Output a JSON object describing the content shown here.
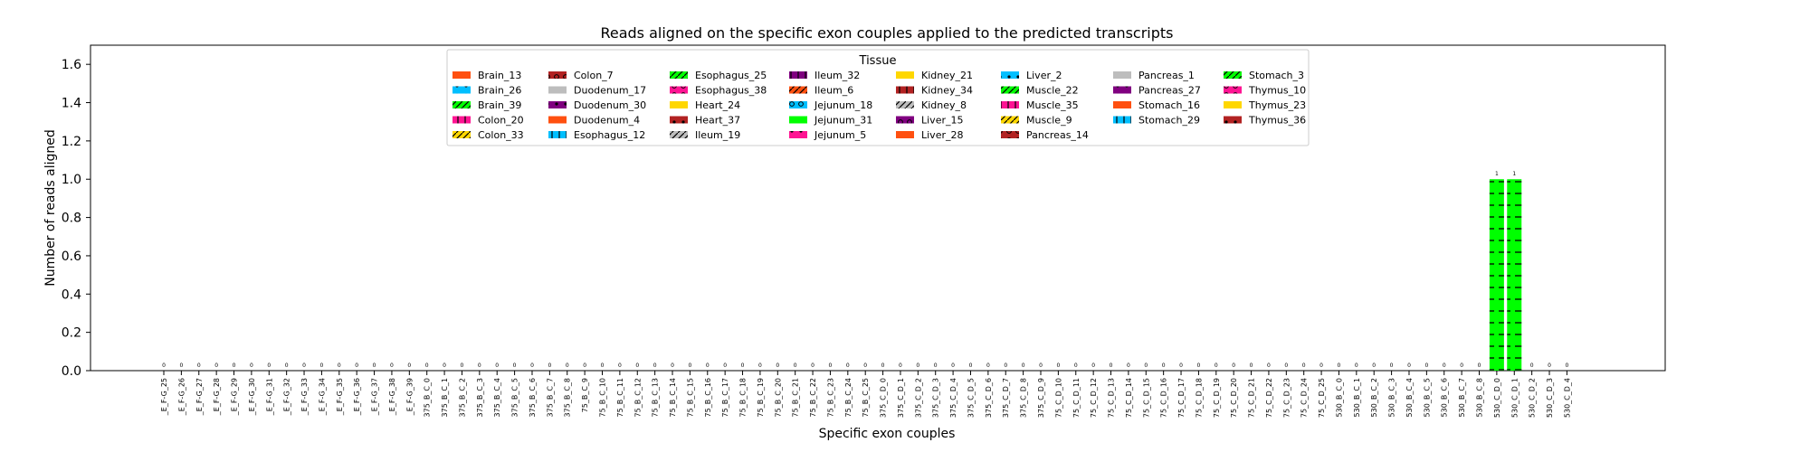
{
  "chart_data": {
    "type": "bar",
    "title": "Reads aligned on the specific exon couples applied to the predicted transcripts",
    "xlabel": "Specific exon couples",
    "ylabel": "Number of reads aligned",
    "ylim": [
      0,
      1.7
    ],
    "yticks": [
      0.0,
      0.2,
      0.4,
      0.6,
      0.8,
      1.0,
      1.2,
      1.4,
      1.6
    ],
    "ytick_labels": [
      "0.0",
      "0.2",
      "0.4",
      "0.6",
      "0.8",
      "1.0",
      "1.2",
      "1.4",
      "1.6"
    ],
    "grid": false,
    "legend_placement": "top-center",
    "categories": [
      "_E_F-G_25",
      "_E_F-G_26",
      "_E_F-G_27",
      "_E_F-G_28",
      "_E_F-G_29",
      "_E_F-G_30",
      "_E_F-G_31",
      "_E_F-G_32",
      "_E_F-G_33",
      "_E_F-G_34",
      "_E_F-G_35",
      "_E_F-G_36",
      "_E_F-G_37",
      "_E_F-G_38",
      "_E_F-G_39",
      "375_B_C_0",
      "375_B_C_1",
      "375_B_C_2",
      "375_B_C_3",
      "375_B_C_4",
      "375_B_C_5",
      "375_B_C_6",
      "375_B_C_7",
      "375_B_C_8",
      "75_B_C_9",
      "75_B_C_10",
      "75_B_C_11",
      "75_B_C_12",
      "75_B_C_13",
      "75_B_C_14",
      "75_B_C_15",
      "75_B_C_16",
      "75_B_C_17",
      "75_B_C_18",
      "75_B_C_19",
      "75_B_C_20",
      "75_B_C_21",
      "75_B_C_22",
      "75_B_C_23",
      "75_B_C_24",
      "75_B_C_25",
      "375_C_D_0",
      "375_C_D_1",
      "375_C_D_2",
      "375_C_D_3",
      "375_C_D_4",
      "375_C_D_5",
      "375_C_D_6",
      "375_C_D_7",
      "375_C_D_8",
      "375_C_D_9",
      "75_C_D_10",
      "75_C_D_11",
      "75_C_D_12",
      "75_C_D_13",
      "75_C_D_14",
      "75_C_D_15",
      "75_C_D_16",
      "75_C_D_17",
      "75_C_D_18",
      "75_C_D_19",
      "75_C_D_20",
      "75_C_D_21",
      "75_C_D_22",
      "75_C_D_23",
      "75_C_D_24",
      "75_C_D_25",
      "530_B_C_0",
      "530_B_C_1",
      "530_B_C_2",
      "530_B_C_3",
      "530_B_C_4",
      "530_B_C_5",
      "530_B_C_6",
      "530_B_C_7",
      "530_B_C_8",
      "530_C_D_0",
      "530_C_D_1",
      "530_C_D_2",
      "530_C_D_3",
      "530_C_D_4"
    ],
    "values": [
      0,
      0,
      0,
      0,
      0,
      0,
      0,
      0,
      0,
      0,
      0,
      0,
      0,
      0,
      0,
      0,
      0,
      0,
      0,
      0,
      0,
      0,
      0,
      0,
      0,
      0,
      0,
      0,
      0,
      0,
      0,
      0,
      0,
      0,
      0,
      0,
      0,
      0,
      0,
      0,
      0,
      0,
      0,
      0,
      0,
      0,
      0,
      0,
      0,
      0,
      0,
      0,
      0,
      0,
      0,
      0,
      0,
      0,
      0,
      0,
      0,
      0,
      0,
      0,
      0,
      0,
      0,
      0,
      0,
      0,
      0,
      0,
      0,
      0,
      0,
      0,
      1,
      1,
      0,
      0,
      0
    ],
    "data_labels": [
      "0",
      "0",
      "0",
      "0",
      "0",
      "0",
      "0",
      "0",
      "0",
      "0",
      "0",
      "0",
      "0",
      "0",
      "0",
      "0",
      "0",
      "0",
      "0",
      "0",
      "0",
      "0",
      "0",
      "0",
      "0",
      "0",
      "0",
      "0",
      "0",
      "0",
      "0",
      "0",
      "0",
      "0",
      "0",
      "0",
      "0",
      "0",
      "0",
      "0",
      "0",
      "0",
      "0",
      "0",
      "0",
      "0",
      "0",
      "0",
      "0",
      "0",
      "0",
      "0",
      "0",
      "0",
      "0",
      "0",
      "0",
      "0",
      "0",
      "0",
      "0",
      "0",
      "0",
      "0",
      "0",
      "0",
      "0",
      "0",
      "0",
      "0",
      "0",
      "0",
      "0",
      "0",
      "0",
      "0",
      "1",
      "1",
      "0",
      "0",
      "0"
    ],
    "bar_color": "#00ff00",
    "bar_hatch": "horizontal-dash",
    "legend": {
      "title": "Tissue",
      "columns": [
        [
          {
            "label": "Brain_13",
            "color": "#ff5010",
            "hatch": "none"
          },
          {
            "label": "Brain_26",
            "color": "#00bfff",
            "hatch": "dot"
          },
          {
            "label": "Brain_39",
            "color": "#00ff00",
            "hatch": "slash"
          },
          {
            "label": "Colon_20",
            "color": "#ff1493",
            "hatch": "vbar"
          },
          {
            "label": "Colon_33",
            "color": "#ffd700",
            "hatch": "slash"
          }
        ],
        [
          {
            "label": "Colon_7",
            "color": "#b22222",
            "hatch": "circle"
          },
          {
            "label": "Duodenum_17",
            "color": "#bdbdbd",
            "hatch": "none"
          },
          {
            "label": "Duodenum_30",
            "color": "#800080",
            "hatch": "dot"
          },
          {
            "label": "Duodenum_4",
            "color": "#ff5010",
            "hatch": "none"
          },
          {
            "label": "Esophagus_12",
            "color": "#00bfff",
            "hatch": "vbar"
          }
        ],
        [
          {
            "label": "Esophagus_25",
            "color": "#00ff00",
            "hatch": "slash"
          },
          {
            "label": "Esophagus_38",
            "color": "#ff1493",
            "hatch": "circle"
          },
          {
            "label": "Heart_24",
            "color": "#ffd700",
            "hatch": "none"
          },
          {
            "label": "Heart_37",
            "color": "#b22222",
            "hatch": "dot"
          },
          {
            "label": "Ileum_19",
            "color": "#bdbdbd",
            "hatch": "slash"
          }
        ],
        [
          {
            "label": "Ileum_32",
            "color": "#800080",
            "hatch": "vbar"
          },
          {
            "label": "Ileum_6",
            "color": "#ff5010",
            "hatch": "slash"
          },
          {
            "label": "Jejunum_18",
            "color": "#00bfff",
            "hatch": "circle"
          },
          {
            "label": "Jejunum_31",
            "color": "#00ff00",
            "hatch": "none"
          },
          {
            "label": "Jejunum_5",
            "color": "#ff1493",
            "hatch": "dot"
          }
        ],
        [
          {
            "label": "Kidney_21",
            "color": "#ffd700",
            "hatch": "none"
          },
          {
            "label": "Kidney_34",
            "color": "#b22222",
            "hatch": "vbar"
          },
          {
            "label": "Kidney_8",
            "color": "#bdbdbd",
            "hatch": "slash"
          },
          {
            "label": "Liver_15",
            "color": "#800080",
            "hatch": "circle"
          },
          {
            "label": "Liver_28",
            "color": "#ff5010",
            "hatch": "none"
          }
        ],
        [
          {
            "label": "Liver_2",
            "color": "#00bfff",
            "hatch": "dot"
          },
          {
            "label": "Muscle_22",
            "color": "#00ff00",
            "hatch": "slash"
          },
          {
            "label": "Muscle_35",
            "color": "#ff1493",
            "hatch": "vbar"
          },
          {
            "label": "Muscle_9",
            "color": "#ffd700",
            "hatch": "slash"
          },
          {
            "label": "Pancreas_14",
            "color": "#b22222",
            "hatch": "circle"
          }
        ],
        [
          {
            "label": "Pancreas_1",
            "color": "#bdbdbd",
            "hatch": "none"
          },
          {
            "label": "Pancreas_27",
            "color": "#800080",
            "hatch": "dot"
          },
          {
            "label": "Stomach_16",
            "color": "#ff5010",
            "hatch": "none"
          },
          {
            "label": "Stomach_29",
            "color": "#00bfff",
            "hatch": "vbar"
          }
        ],
        [
          {
            "label": "Stomach_3",
            "color": "#00ff00",
            "hatch": "slash"
          },
          {
            "label": "Thymus_10",
            "color": "#ff1493",
            "hatch": "circle"
          },
          {
            "label": "Thymus_23",
            "color": "#ffd700",
            "hatch": "none"
          },
          {
            "label": "Thymus_36",
            "color": "#b22222",
            "hatch": "dot"
          }
        ]
      ]
    }
  }
}
